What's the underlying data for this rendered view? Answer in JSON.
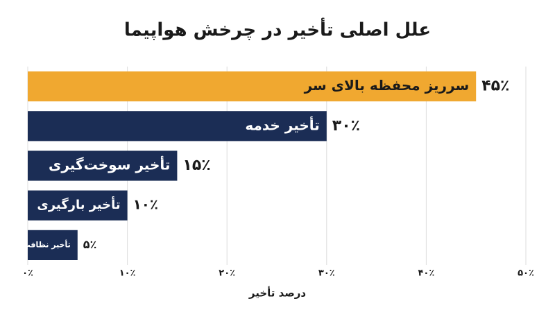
{
  "chart_data": {
    "type": "hbar",
    "title": "علل اصلی تأخیر در چرخش هواپیما",
    "x_label": "درصد تأخیر",
    "categories": [
      "سرریز محفظه بالای سر",
      "تأخیر خدمه",
      "تأخیر سوخت‌گیری",
      "تأخیر بارگیری",
      "تأخیر نظافت"
    ],
    "values": [
      45,
      30,
      15,
      10,
      5
    ],
    "value_labels": [
      "۴۵٪",
      "۳۰٪",
      "۱۵٪",
      "۱۰٪",
      "۵٪"
    ],
    "colors": [
      "#f0a830",
      "#1b2d55",
      "#1b2d55",
      "#1b2d55",
      "#1b2d55"
    ],
    "xlim": [
      0,
      50
    ],
    "xticks": [
      {
        "value": 0,
        "label": "۰٪"
      },
      {
        "value": 10,
        "label": "۱۰٪"
      },
      {
        "value": 20,
        "label": "۲۰٪"
      },
      {
        "value": 30,
        "label": "۳۰٪"
      },
      {
        "value": 40,
        "label": "۴۰٪"
      },
      {
        "value": 50,
        "label": "۵۰٪"
      }
    ],
    "grid": true
  }
}
